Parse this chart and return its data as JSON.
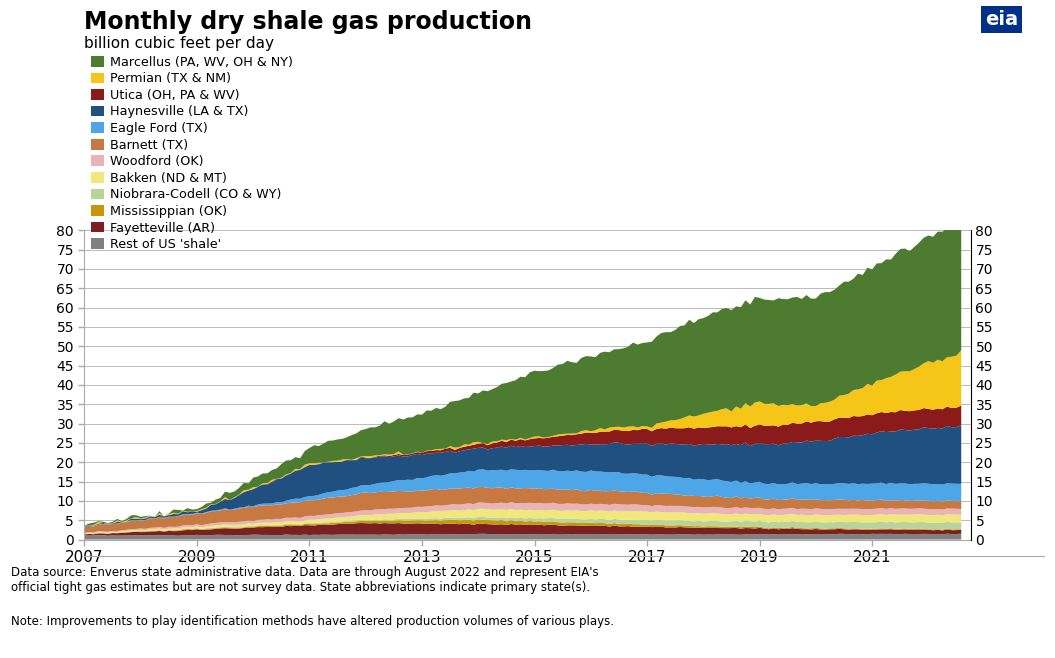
{
  "title": "Monthly dry shale gas production",
  "subtitle": "billion cubic feet per day",
  "datasource_text": "Data source: Enverus state administrative data. Data are through August 2022 and represent EIA's\nofficial tight gas estimates but are not survey data. State abbreviations indicate primary state(s).",
  "note_text": "Note: Improvements to play identification methods have altered production volumes of various plays.",
  "ylim": [
    0,
    80
  ],
  "yticks": [
    0,
    5,
    10,
    15,
    20,
    25,
    30,
    35,
    40,
    45,
    50,
    55,
    60,
    65,
    70,
    75,
    80
  ],
  "xtick_years": [
    2007,
    2009,
    2011,
    2013,
    2015,
    2017,
    2019,
    2021
  ],
  "series": [
    {
      "name": "Rest of US 'shale'",
      "color": "#808080"
    },
    {
      "name": "Fayetteville (AR)",
      "color": "#7b2020"
    },
    {
      "name": "Mississippian (OK)",
      "color": "#c8960a"
    },
    {
      "name": "Niobrara-Codell (CO & WY)",
      "color": "#b8d49c"
    },
    {
      "name": "Bakken (ND & MT)",
      "color": "#f0e87a"
    },
    {
      "name": "Woodford (OK)",
      "color": "#e8b4b8"
    },
    {
      "name": "Barnett (TX)",
      "color": "#c87941"
    },
    {
      "name": "Eagle Ford (TX)",
      "color": "#4da6e8"
    },
    {
      "name": "Haynesville (LA & TX)",
      "color": "#1f5080"
    },
    {
      "name": "Utica (OH, PA & WV)",
      "color": "#8b1a1a"
    },
    {
      "name": "Permian (TX & NM)",
      "color": "#f5c518"
    },
    {
      "name": "Marcellus (PA, WV, OH & NY)",
      "color": "#4d7c30"
    }
  ],
  "background_color": "#ffffff",
  "grid_color": "#aaaaaa"
}
